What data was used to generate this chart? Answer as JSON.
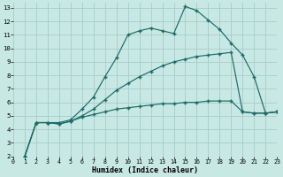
{
  "xlabel": "Humidex (Indice chaleur)",
  "bg_color": "#c8e8e4",
  "line_color": "#1a6b68",
  "grid_color": "#a8ccc8",
  "xlim": [
    0,
    23
  ],
  "ylim": [
    2,
    13.4
  ],
  "xticks": [
    0,
    1,
    2,
    3,
    4,
    5,
    6,
    7,
    8,
    9,
    10,
    11,
    12,
    13,
    14,
    15,
    16,
    17,
    18,
    19,
    20,
    21,
    22,
    23
  ],
  "yticks": [
    2,
    3,
    4,
    5,
    6,
    7,
    8,
    9,
    10,
    11,
    12,
    13
  ],
  "curve1_x": [
    1,
    2,
    3,
    4,
    5,
    6,
    7,
    8,
    9,
    10,
    11,
    12,
    13,
    14,
    15,
    16,
    17,
    18,
    19,
    20,
    21,
    22,
    23
  ],
  "curve1_y": [
    2.0,
    4.5,
    4.5,
    4.5,
    4.7,
    5.5,
    6.4,
    7.9,
    9.3,
    11.0,
    11.3,
    11.5,
    11.3,
    11.1,
    13.1,
    12.8,
    12.1,
    11.4,
    10.4,
    9.5,
    7.9,
    5.2,
    5.3
  ],
  "curve2_x": [
    1,
    2,
    3,
    4,
    5,
    6,
    7,
    8,
    9,
    10,
    11,
    12,
    13,
    14,
    15,
    16,
    17,
    18,
    19,
    20,
    21,
    22,
    23
  ],
  "curve2_y": [
    2.0,
    4.5,
    4.5,
    4.4,
    4.6,
    5.0,
    5.5,
    6.2,
    6.9,
    7.4,
    7.9,
    8.3,
    8.7,
    9.0,
    9.2,
    9.4,
    9.5,
    9.6,
    9.7,
    5.3,
    5.2,
    5.2,
    5.3
  ],
  "curve3_x": [
    1,
    2,
    3,
    4,
    5,
    6,
    7,
    8,
    9,
    10,
    11,
    12,
    13,
    14,
    15,
    16,
    17,
    18,
    19,
    20,
    21,
    22,
    23
  ],
  "curve3_y": [
    2.0,
    4.5,
    4.5,
    4.4,
    4.6,
    4.9,
    5.1,
    5.3,
    5.5,
    5.6,
    5.7,
    5.8,
    5.9,
    5.9,
    6.0,
    6.0,
    6.1,
    6.1,
    6.1,
    5.3,
    5.2,
    5.2,
    5.3
  ]
}
